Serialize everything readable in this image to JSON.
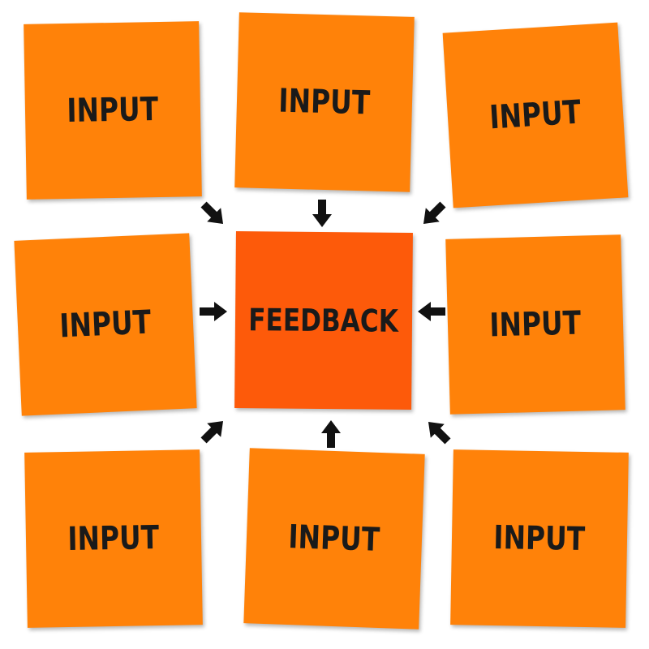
{
  "diagram": {
    "center": {
      "label": "FEEDBACK",
      "color": "#fd5a0a"
    },
    "inputs": [
      {
        "label": "INPUT"
      },
      {
        "label": "INPUT"
      },
      {
        "label": "INPUT"
      },
      {
        "label": "INPUT"
      },
      {
        "label": "INPUT"
      },
      {
        "label": "INPUT"
      },
      {
        "label": "INPUT"
      },
      {
        "label": "INPUT"
      }
    ],
    "note_color": "#ff8209",
    "arrow_color": "#111111",
    "arrow_icon": "arrow-icon"
  }
}
